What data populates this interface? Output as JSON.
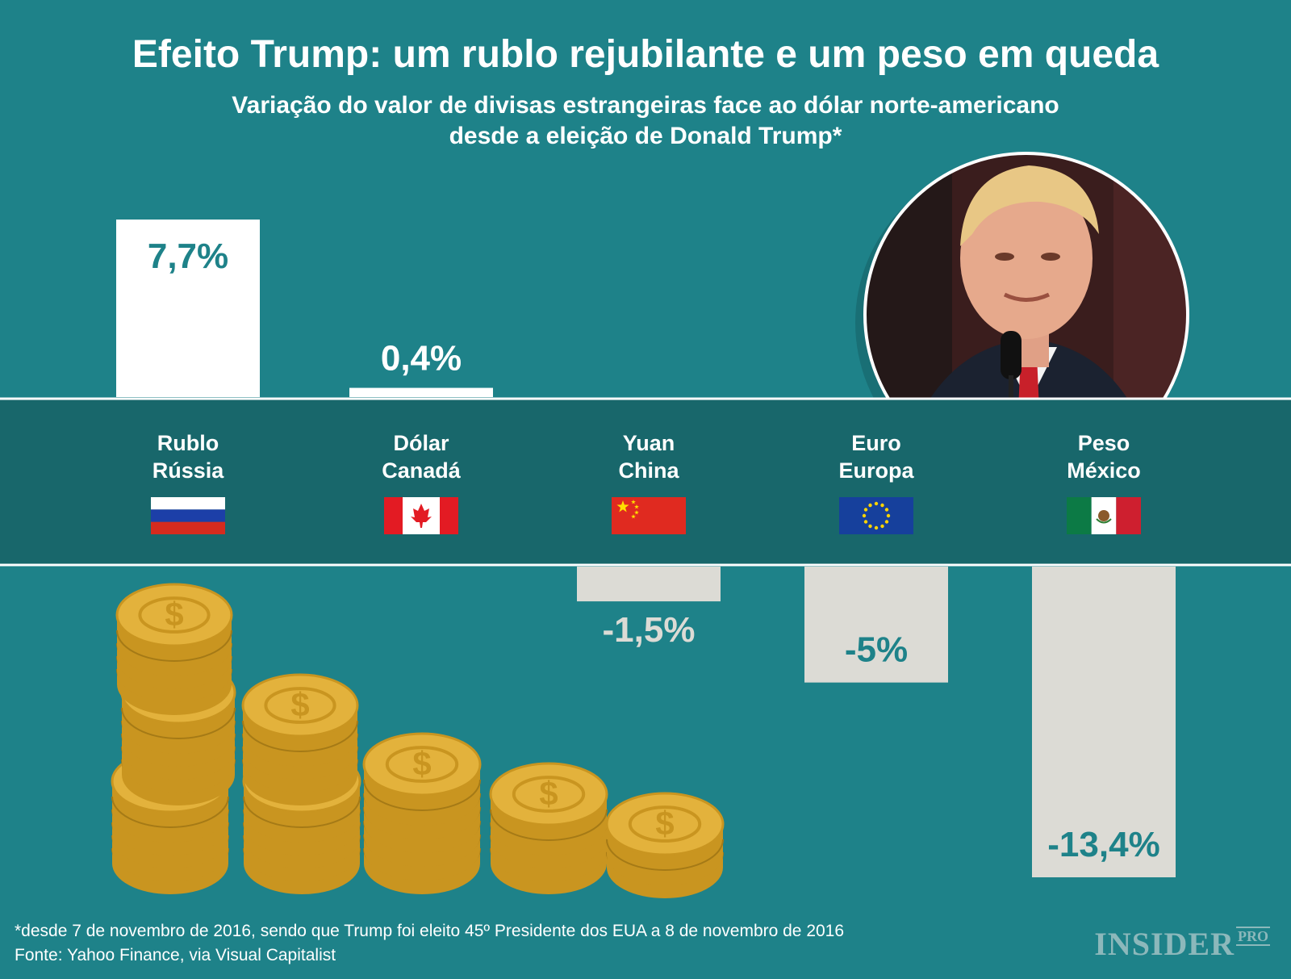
{
  "title": "Efeito Trump: um rublo rejubilante e um peso em queda",
  "subtitle_line1": "Variação do valor de divisas estrangeiras face ao dólar norte-americano",
  "subtitle_line2": "desde a eleição de Donald Trump*",
  "footnote_line1": "*desde 7 de novembro de 2016, sendo que Trump foi eleito 45º Presidente dos EUA a 8 de novembro de 2016",
  "footnote_line2": "Fonte: Yahoo Finance, via Visual Capitalist",
  "logo": "INSIDER",
  "logo_suffix": "PRO",
  "colors": {
    "background": "#1e8289",
    "band": "#18676b",
    "positive_bar": "#ffffff",
    "negative_bar": "#dcdbd5",
    "value_text": "#1e8289",
    "coin": "#e3b23c"
  },
  "photo_icon": "donald-trump-portrait",
  "chart_data": {
    "type": "bar",
    "categories": [
      "Rublo Rússia",
      "Dólar Canadá",
      "Yuan China",
      "Euro Europa",
      "Peso México"
    ],
    "values": [
      7.7,
      0.4,
      -1.5,
      -5,
      -13.4
    ],
    "value_labels": [
      "7,7%",
      "0,4%",
      "-1,5%",
      "-5%",
      "-13,4%"
    ],
    "currencies": [
      {
        "currency": "Rublo",
        "country": "Rússia",
        "flag_icon": "russia-flag-icon"
      },
      {
        "currency": "Dólar",
        "country": "Canadá",
        "flag_icon": "canada-flag-icon"
      },
      {
        "currency": "Yuan",
        "country": "China",
        "flag_icon": "china-flag-icon"
      },
      {
        "currency": "Euro",
        "country": "Europa",
        "flag_icon": "eu-flag-icon"
      },
      {
        "currency": "Peso",
        "country": "México",
        "flag_icon": "mexico-flag-icon"
      }
    ],
    "title": "Efeito Trump: um rublo rejubilante e um peso em queda",
    "xlabel": "",
    "ylabel": "",
    "grid": false
  }
}
